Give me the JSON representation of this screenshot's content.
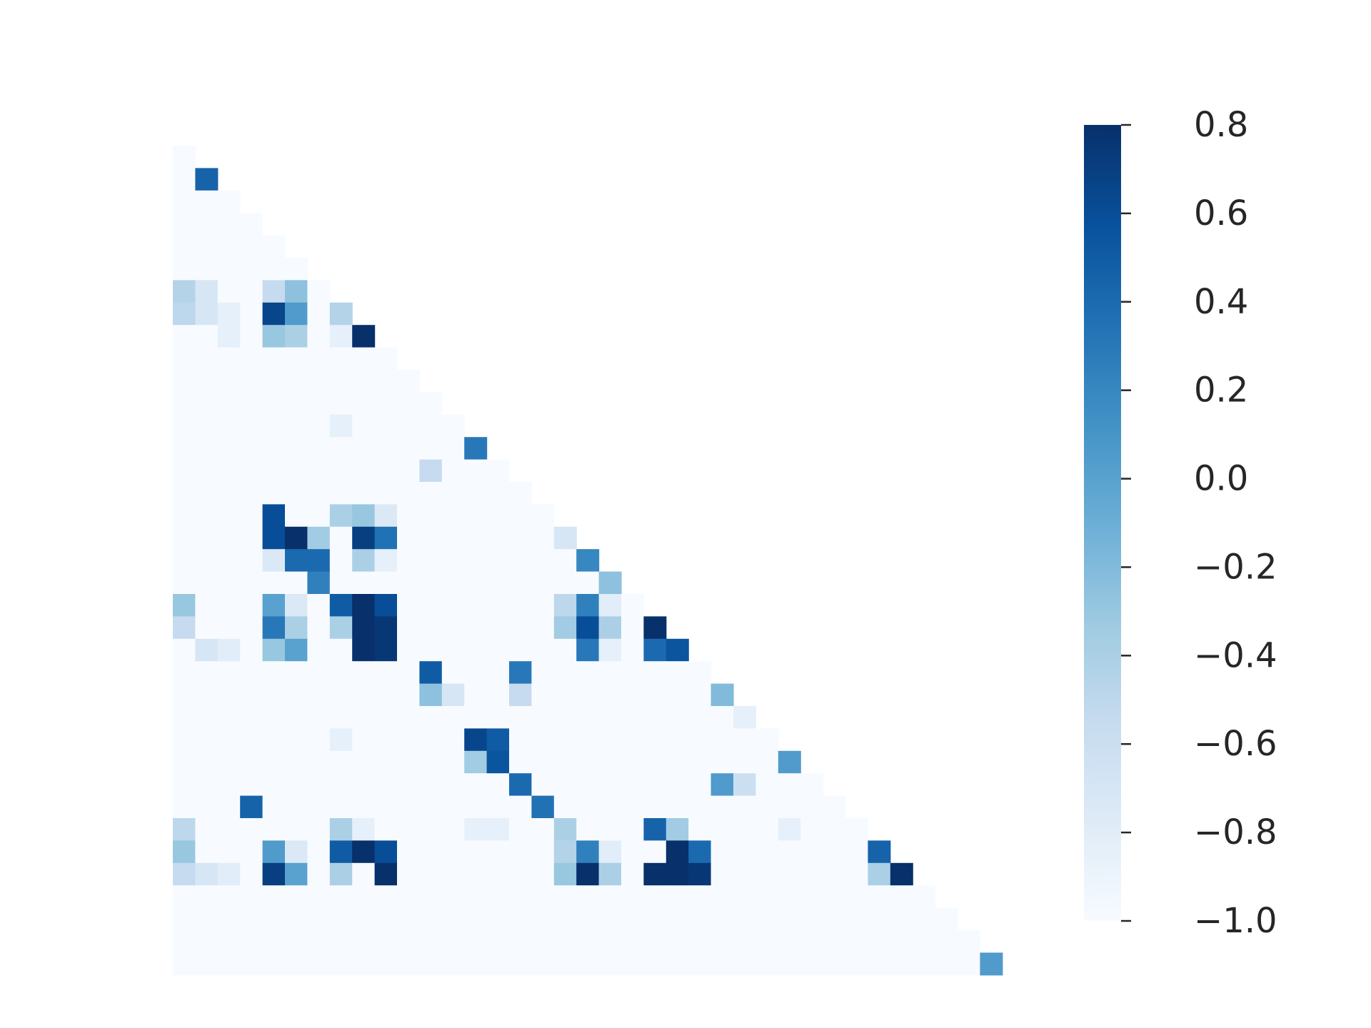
{
  "chart_data": {
    "type": "heatmap",
    "title": "",
    "xlabel": "",
    "ylabel": "",
    "mask": "upper-triangle",
    "n": 37,
    "colormap": "Blues",
    "vmin": -1.0,
    "vmax": 0.8,
    "colorbar": {
      "ticks": [
        0.8,
        0.6,
        0.4,
        0.2,
        0.0,
        -0.2,
        -0.4,
        -0.6,
        -0.8,
        -1.0
      ],
      "tick_labels": [
        "0.8",
        "0.6",
        "0.4",
        "0.2",
        "0.0",
        "−0.2",
        "−0.4",
        "−0.6",
        "−0.8",
        "−1.0"
      ],
      "placement": "right"
    },
    "cells": [
      [
        1,
        1,
        0.45
      ],
      [
        6,
        0,
        -0.45
      ],
      [
        6,
        1,
        -0.7
      ],
      [
        6,
        4,
        -0.55
      ],
      [
        6,
        5,
        -0.25
      ],
      [
        7,
        0,
        -0.5
      ],
      [
        7,
        1,
        -0.7
      ],
      [
        7,
        2,
        -0.85
      ],
      [
        7,
        4,
        0.65
      ],
      [
        7,
        5,
        0.05
      ],
      [
        7,
        7,
        -0.45
      ],
      [
        8,
        2,
        -0.85
      ],
      [
        8,
        4,
        -0.3
      ],
      [
        8,
        5,
        -0.4
      ],
      [
        8,
        7,
        -0.85
      ],
      [
        8,
        8,
        0.8
      ],
      [
        12,
        7,
        -0.85
      ],
      [
        13,
        13,
        0.3
      ],
      [
        14,
        11,
        -0.55
      ],
      [
        16,
        4,
        0.6
      ],
      [
        16,
        7,
        -0.4
      ],
      [
        16,
        8,
        -0.3
      ],
      [
        16,
        9,
        -0.75
      ],
      [
        17,
        4,
        0.6
      ],
      [
        17,
        5,
        0.8
      ],
      [
        17,
        6,
        -0.35
      ],
      [
        17,
        8,
        0.7
      ],
      [
        17,
        9,
        0.35
      ],
      [
        17,
        17,
        -0.7
      ],
      [
        18,
        4,
        -0.75
      ],
      [
        18,
        5,
        0.4
      ],
      [
        18,
        6,
        0.4
      ],
      [
        18,
        8,
        -0.4
      ],
      [
        18,
        9,
        -0.85
      ],
      [
        18,
        18,
        0.2
      ],
      [
        19,
        6,
        0.25
      ],
      [
        19,
        19,
        -0.25
      ],
      [
        20,
        0,
        -0.3
      ],
      [
        20,
        4,
        0.0
      ],
      [
        20,
        5,
        -0.75
      ],
      [
        20,
        7,
        0.5
      ],
      [
        20,
        8,
        0.8
      ],
      [
        20,
        9,
        0.6
      ],
      [
        20,
        17,
        -0.5
      ],
      [
        20,
        18,
        0.25
      ],
      [
        20,
        19,
        -0.8
      ],
      [
        21,
        0,
        -0.55
      ],
      [
        21,
        4,
        0.3
      ],
      [
        21,
        5,
        -0.4
      ],
      [
        21,
        7,
        -0.4
      ],
      [
        21,
        8,
        0.8
      ],
      [
        21,
        9,
        0.75
      ],
      [
        21,
        17,
        -0.35
      ],
      [
        21,
        18,
        0.6
      ],
      [
        21,
        19,
        -0.4
      ],
      [
        21,
        21,
        0.8
      ],
      [
        22,
        1,
        -0.7
      ],
      [
        22,
        2,
        -0.8
      ],
      [
        22,
        4,
        -0.3
      ],
      [
        22,
        5,
        0.0
      ],
      [
        22,
        8,
        0.8
      ],
      [
        22,
        9,
        0.75
      ],
      [
        22,
        18,
        0.3
      ],
      [
        22,
        19,
        -0.85
      ],
      [
        22,
        21,
        0.4
      ],
      [
        22,
        22,
        0.55
      ],
      [
        23,
        11,
        0.5
      ],
      [
        23,
        15,
        0.3
      ],
      [
        24,
        11,
        -0.25
      ],
      [
        24,
        12,
        -0.7
      ],
      [
        24,
        15,
        -0.55
      ],
      [
        24,
        24,
        -0.2
      ],
      [
        25,
        25,
        -0.85
      ],
      [
        26,
        7,
        -0.85
      ],
      [
        26,
        13,
        0.65
      ],
      [
        26,
        14,
        0.5
      ],
      [
        27,
        13,
        -0.35
      ],
      [
        27,
        14,
        0.55
      ],
      [
        27,
        27,
        0.05
      ],
      [
        28,
        15,
        0.4
      ],
      [
        28,
        24,
        0.05
      ],
      [
        28,
        25,
        -0.6
      ],
      [
        29,
        3,
        0.45
      ],
      [
        29,
        16,
        0.35
      ],
      [
        30,
        0,
        -0.5
      ],
      [
        30,
        7,
        -0.4
      ],
      [
        30,
        8,
        -0.85
      ],
      [
        30,
        13,
        -0.85
      ],
      [
        30,
        14,
        -0.85
      ],
      [
        30,
        17,
        -0.4
      ],
      [
        30,
        21,
        0.45
      ],
      [
        30,
        22,
        -0.35
      ],
      [
        30,
        27,
        -0.85
      ],
      [
        31,
        0,
        -0.3
      ],
      [
        31,
        4,
        0.05
      ],
      [
        31,
        5,
        -0.75
      ],
      [
        31,
        7,
        0.5
      ],
      [
        31,
        8,
        0.8
      ],
      [
        31,
        9,
        0.6
      ],
      [
        31,
        17,
        -0.45
      ],
      [
        31,
        18,
        0.25
      ],
      [
        31,
        19,
        -0.8
      ],
      [
        31,
        22,
        0.8
      ],
      [
        31,
        23,
        0.4
      ],
      [
        31,
        31,
        0.45
      ],
      [
        32,
        0,
        -0.55
      ],
      [
        32,
        1,
        -0.7
      ],
      [
        32,
        2,
        -0.8
      ],
      [
        32,
        4,
        0.7
      ],
      [
        32,
        5,
        0.0
      ],
      [
        32,
        7,
        -0.4
      ],
      [
        32,
        9,
        0.8
      ],
      [
        32,
        17,
        -0.3
      ],
      [
        32,
        18,
        0.8
      ],
      [
        32,
        19,
        -0.4
      ],
      [
        32,
        21,
        0.8
      ],
      [
        32,
        22,
        0.8
      ],
      [
        32,
        23,
        0.75
      ],
      [
        32,
        31,
        -0.4
      ],
      [
        32,
        32,
        0.8
      ],
      [
        36,
        36,
        0.05
      ]
    ]
  }
}
